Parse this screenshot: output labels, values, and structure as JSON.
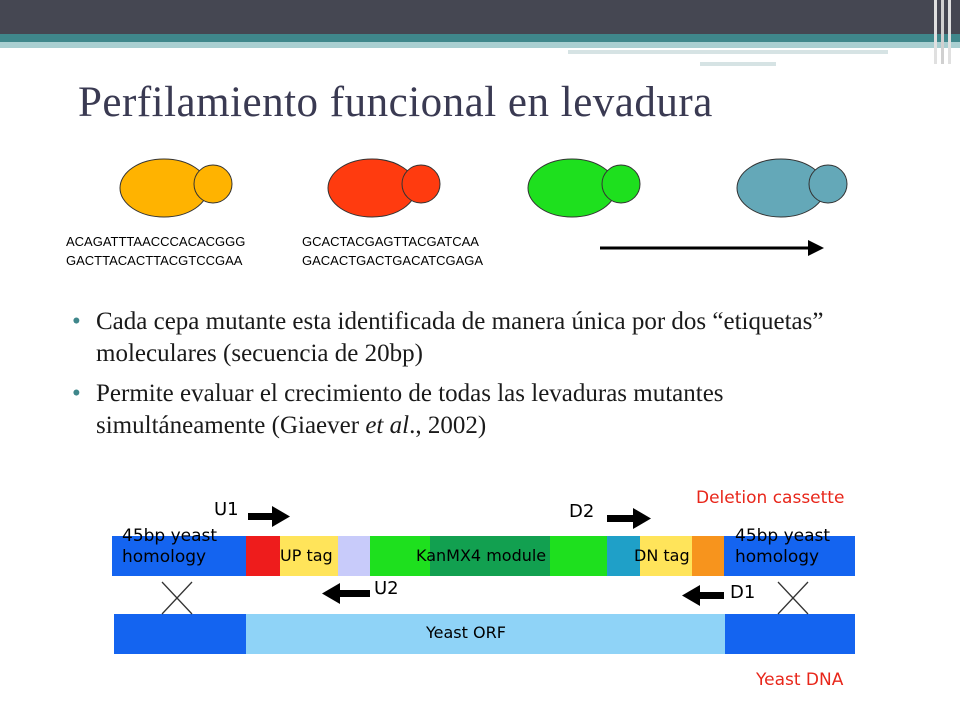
{
  "slide": {
    "title": "Perfilamiento funcional en levadura"
  },
  "yeast_cells": [
    {
      "color": "#FFB300"
    },
    {
      "color": "#FF3B0F"
    },
    {
      "color": "#1EE01E"
    },
    {
      "color": "#64A8B8"
    }
  ],
  "barcodes": {
    "left": [
      "ACAGATTTAACCCACACGGG",
      "GACTTACACTTACGTCCGAA"
    ],
    "right": [
      "GCACTACGAGTTACGATCAA",
      "GACACTGACTGACATCGAGA"
    ]
  },
  "bullets": [
    {
      "text": "Cada cepa mutante esta identificada de manera única por dos “etiquetas” moleculares (secuencia de 20bp)"
    },
    {
      "text_before": "Permite evaluar el crecimiento de todas las levaduras mutantes simultáneamente (Giaever ",
      "text_italic": "et al",
      "text_after": "., 2002)"
    }
  ],
  "diagram": {
    "cassette_title": "Deletion cassette",
    "dna_title": "Yeast DNA",
    "primers": {
      "u1": "U1",
      "u2": "U2",
      "d1": "D1",
      "d2": "D2"
    },
    "homology_left": [
      "45bp yeast",
      "homology"
    ],
    "homology_right": [
      "45bp yeast",
      "homology"
    ],
    "up_tag": "UP tag",
    "kan_module": "KanMX4 module",
    "dn_tag": "DN tag",
    "orf": "Yeast ORF",
    "colors": {
      "blue": "#1464F0",
      "red": "#EE1C1C",
      "yellow": "#FFE45A",
      "lavender": "#C8CBFA",
      "bright_green": "#1EE01E",
      "dark_green": "#12A050",
      "teal": "#1FA0C8",
      "orange": "#F7941D",
      "light_blue": "#8FD3F7",
      "label_red": "#E8261A"
    }
  }
}
